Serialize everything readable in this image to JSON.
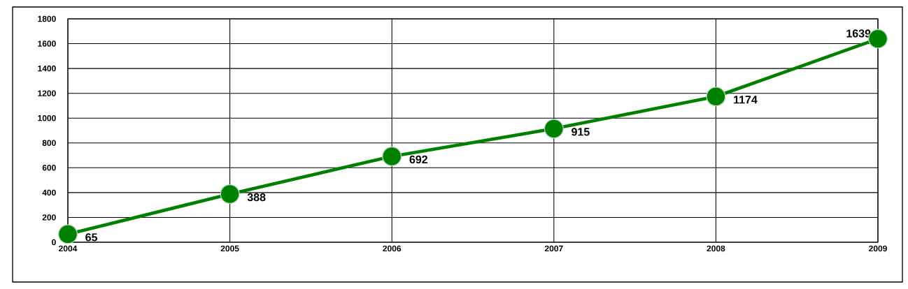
{
  "chart_data": {
    "type": "line",
    "x": [
      2004,
      2005,
      2006,
      2007,
      2008,
      2009
    ],
    "values": [
      65,
      388,
      692,
      915,
      1174,
      1639
    ],
    "color": "#008000",
    "xlim": [
      2004,
      2009
    ],
    "xticks": [
      2004,
      2005,
      2006,
      2007,
      2008,
      2009
    ],
    "ylim": [
      0,
      1800
    ],
    "yticks": [
      0,
      200,
      400,
      600,
      800,
      1000,
      1200,
      1400,
      1600,
      1800
    ],
    "grid": true,
    "marker": "circle",
    "line_style": "solid",
    "data_labels": true
  }
}
